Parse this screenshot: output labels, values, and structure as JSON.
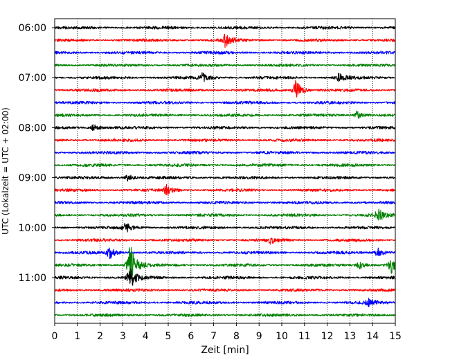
{
  "chart_data": {
    "type": "line",
    "subtype": "helicorder",
    "xlabel": "Zeit  [min]",
    "ylabel": "UTC (Lokalzeit = UTC + 02:00)",
    "xlim": [
      0,
      15
    ],
    "x_ticks": [
      "0",
      "1",
      "2",
      "3",
      "4",
      "5",
      "6",
      "7",
      "8",
      "9",
      "10",
      "11",
      "12",
      "13",
      "14",
      "15"
    ],
    "y_tick_labels": [
      "06:00",
      "07:00",
      "08:00",
      "09:00",
      "10:00",
      "11:00"
    ],
    "grid": "vertical dotted",
    "trace_colors": [
      "#000000",
      "#ff0000",
      "#0000ff",
      "#008000"
    ],
    "traces": [
      {
        "start": "06:00",
        "color": "#000000",
        "events": []
      },
      {
        "start": "06:15",
        "color": "#ff0000",
        "events": [
          {
            "minute": 7.5,
            "amplitude": 0.9
          }
        ]
      },
      {
        "start": "06:30",
        "color": "#0000ff",
        "events": []
      },
      {
        "start": "06:45",
        "color": "#008000",
        "events": []
      },
      {
        "start": "07:00",
        "color": "#000000",
        "events": [
          {
            "minute": 6.5,
            "amplitude": 0.6
          },
          {
            "minute": 12.5,
            "amplitude": 0.5
          }
        ]
      },
      {
        "start": "07:15",
        "color": "#ff0000",
        "events": [
          {
            "minute": 10.6,
            "amplitude": 1.3
          }
        ]
      },
      {
        "start": "07:30",
        "color": "#0000ff",
        "events": []
      },
      {
        "start": "07:45",
        "color": "#008000",
        "events": [
          {
            "minute": 13.3,
            "amplitude": 0.5
          }
        ]
      },
      {
        "start": "08:00",
        "color": "#000000",
        "events": [
          {
            "minute": 1.7,
            "amplitude": 0.5
          }
        ]
      },
      {
        "start": "08:15",
        "color": "#ff0000",
        "events": []
      },
      {
        "start": "08:30",
        "color": "#0000ff",
        "events": []
      },
      {
        "start": "08:45",
        "color": "#008000",
        "events": []
      },
      {
        "start": "09:00",
        "color": "#000000",
        "events": [
          {
            "minute": 3.2,
            "amplitude": 0.4
          }
        ]
      },
      {
        "start": "09:15",
        "color": "#ff0000",
        "events": [
          {
            "minute": 4.9,
            "amplitude": 0.6
          }
        ]
      },
      {
        "start": "09:30",
        "color": "#0000ff",
        "events": []
      },
      {
        "start": "09:45",
        "color": "#008000",
        "events": [
          {
            "minute": 14.2,
            "amplitude": 1.0
          }
        ]
      },
      {
        "start": "10:00",
        "color": "#000000",
        "events": [
          {
            "minute": 3.1,
            "amplitude": 0.6
          }
        ]
      },
      {
        "start": "10:15",
        "color": "#ff0000",
        "events": [
          {
            "minute": 9.5,
            "amplitude": 0.4
          }
        ]
      },
      {
        "start": "10:30",
        "color": "#0000ff",
        "events": [
          {
            "minute": 2.4,
            "amplitude": 0.8
          },
          {
            "minute": 14.2,
            "amplitude": 0.6
          }
        ]
      },
      {
        "start": "10:45",
        "color": "#008000",
        "events": [
          {
            "minute": 3.3,
            "amplitude": 2.8
          },
          {
            "minute": 13.4,
            "amplitude": 0.5
          },
          {
            "minute": 14.8,
            "amplitude": 1.0
          }
        ]
      },
      {
        "start": "11:00",
        "color": "#000000",
        "events": [
          {
            "minute": 3.3,
            "amplitude": 1.4
          }
        ]
      },
      {
        "start": "11:15",
        "color": "#ff0000",
        "events": []
      },
      {
        "start": "11:30",
        "color": "#0000ff",
        "events": [
          {
            "minute": 13.8,
            "amplitude": 0.5
          }
        ]
      },
      {
        "start": "11:45",
        "color": "#008000",
        "events": []
      }
    ]
  }
}
